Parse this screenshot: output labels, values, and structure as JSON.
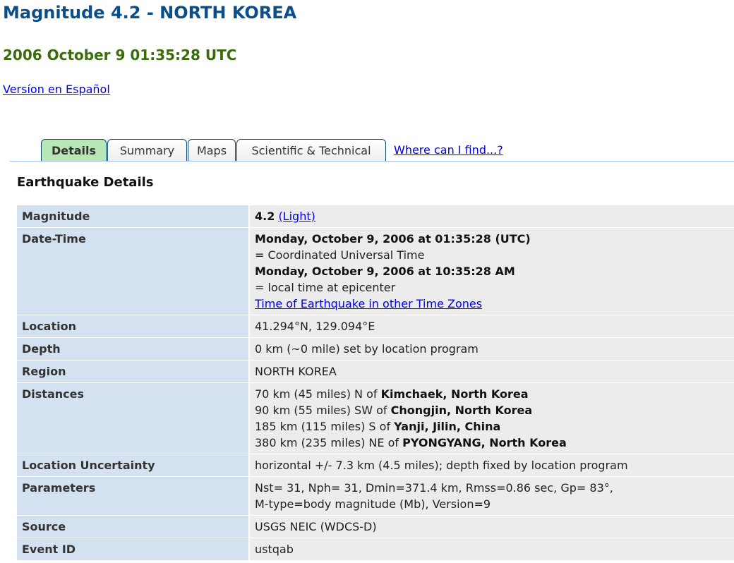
{
  "title": "Magnitude 4.2 - NORTH KOREA",
  "datetime": "2006 October 9 01:35:28 UTC",
  "spanish_link": "Versíon en Español",
  "tabs": [
    "Details",
    "Summary",
    "Maps",
    "Scientific & Technical"
  ],
  "where_link": "Where can I find...?",
  "section_title": "Earthquake Details",
  "rows": {
    "magnitude": {
      "label": "Magnitude",
      "value": "4.2",
      "link": "(Light)"
    },
    "datetime": {
      "label": "Date-Time",
      "utc": "Monday, October 9, 2006 at 01:35:28 (UTC)",
      "utc_note": "= Coordinated Universal Time",
      "local": "Monday, October 9, 2006 at 10:35:28 AM",
      "local_note": "= local time at epicenter",
      "link": "Time of Earthquake in other Time Zones"
    },
    "location": {
      "label": "Location",
      "value": "41.294°N, 129.094°E"
    },
    "depth": {
      "label": "Depth",
      "value": "0 km (~0 mile) set by location program"
    },
    "region": {
      "label": "Region",
      "value": "NORTH KOREA"
    },
    "distances": {
      "label": "Distances",
      "items": [
        {
          "text": "70 km (45 miles) N of ",
          "place": "Kimchaek, North Korea"
        },
        {
          "text": "90 km (55 miles) SW of ",
          "place": "Chongjin, North Korea"
        },
        {
          "text": "185 km (115 miles) S of ",
          "place": "Yanji, Jilin, China"
        },
        {
          "text": "380 km (235 miles) NE of ",
          "place": "PYONGYANG, North Korea"
        }
      ]
    },
    "uncertainty": {
      "label": "Location Uncertainty",
      "value": "horizontal +/- 7.3 km (4.5 miles); depth fixed by location program"
    },
    "parameters": {
      "label": "Parameters",
      "line1": "Nst= 31, Nph= 31, Dmin=371.4 km, Rmss=0.86 sec, Gp= 83°,",
      "line2": "M-type=body magnitude (Mb), Version=9"
    },
    "source": {
      "label": "Source",
      "value": "USGS NEIC (WDCS-D)"
    },
    "event_id": {
      "label": "Event ID",
      "value": "ustqab"
    }
  }
}
